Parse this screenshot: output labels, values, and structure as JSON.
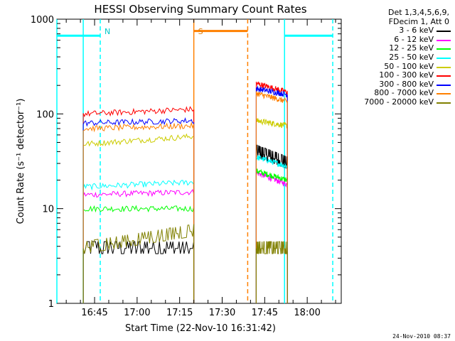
{
  "chart_data": {
    "type": "line",
    "title": "HESSI Observing Summary Count Rates",
    "xlabel": "Start Time (22-Nov-10 16:31:42)",
    "ylabel": "Count Rate (s⁻¹ detector⁻¹)",
    "y_scale": "log",
    "ylim": [
      1,
      1000
    ],
    "xlim": [
      "16:31:42",
      "18:12:00"
    ],
    "x_ticks": [
      "16:45",
      "17:00",
      "17:15",
      "17:30",
      "17:45",
      "18:00"
    ],
    "y_ticks": [
      "1",
      "10",
      "100",
      "1000"
    ],
    "grid": false,
    "legend_position": "right",
    "legend_header": [
      "Det 1,3,4,5,6,9,",
      "FDecim 1, Att 0"
    ],
    "series": [
      {
        "name": "3 - 6 keV",
        "color": "#000000",
        "segments": [
          {
            "x": [
              "16:41",
              "17:20"
            ],
            "y": [
              3.8,
              3.8
            ]
          },
          {
            "x": [
              "17:42",
              "17:53"
            ],
            "y": [
              40,
              30
            ]
          }
        ]
      },
      {
        "name": "6 - 12 keV",
        "color": "#ff00ff",
        "segments": [
          {
            "x": [
              "16:41",
              "17:20"
            ],
            "y": [
              14,
              15
            ]
          },
          {
            "x": [
              "17:42",
              "17:53"
            ],
            "y": [
              24,
              18
            ]
          }
        ]
      },
      {
        "name": "12 - 25 keV",
        "color": "#00ff00",
        "segments": [
          {
            "x": [
              "16:41",
              "17:20"
            ],
            "y": [
              10,
              10
            ]
          },
          {
            "x": [
              "17:42",
              "17:53"
            ],
            "y": [
              25,
              20
            ]
          }
        ]
      },
      {
        "name": "25 - 50 keV",
        "color": "#00ffff",
        "segments": [
          {
            "x": [
              "16:41",
              "17:20"
            ],
            "y": [
              17,
              19
            ]
          },
          {
            "x": [
              "17:42",
              "17:53"
            ],
            "y": [
              35,
              28
            ]
          }
        ]
      },
      {
        "name": "50 - 100 keV",
        "color": "#cccc00",
        "segments": [
          {
            "x": [
              "16:41",
              "17:20"
            ],
            "y": [
              48,
              58
            ]
          },
          {
            "x": [
              "17:42",
              "17:53"
            ],
            "y": [
              85,
              75
            ]
          }
        ]
      },
      {
        "name": "100 - 300 keV",
        "color": "#ff0000",
        "segments": [
          {
            "x": [
              "16:41",
              "17:20"
            ],
            "y": [
              100,
              112
            ]
          },
          {
            "x": [
              "17:42",
              "17:53"
            ],
            "y": [
              210,
              170
            ]
          }
        ]
      },
      {
        "name": "300 - 800 keV",
        "color": "#0000ff",
        "segments": [
          {
            "x": [
              "16:41",
              "17:20"
            ],
            "y": [
              80,
              85
            ]
          },
          {
            "x": [
              "17:42",
              "17:53"
            ],
            "y": [
              185,
              160
            ]
          }
        ]
      },
      {
        "name": "800 - 7000 keV",
        "color": "#ff8000",
        "segments": [
          {
            "x": [
              "16:41",
              "17:20"
            ],
            "y": [
              70,
              75
            ]
          },
          {
            "x": [
              "17:42",
              "17:53"
            ],
            "y": [
              165,
              135
            ]
          }
        ]
      },
      {
        "name": "7000 - 20000 keV",
        "color": "#808000",
        "segments": [
          {
            "x": [
              "16:41",
              "17:20"
            ],
            "y": [
              3.8,
              5.8
            ]
          },
          {
            "x": [
              "17:42",
              "17:53"
            ],
            "y": [
              3.8,
              3.8
            ]
          }
        ]
      }
    ],
    "annotations": [
      {
        "label": "N",
        "color": "#00c8c8",
        "x": "16:47"
      },
      {
        "label": "S",
        "color": "#e07800",
        "x": "17:20"
      }
    ],
    "bars": [
      {
        "color": "#00ffff",
        "x": [
          "16:31:42",
          "16:47"
        ],
        "y": 670
      },
      {
        "color": "#ff8000",
        "x": [
          "17:20",
          "17:39"
        ],
        "y": 750
      },
      {
        "color": "#00ffff",
        "x": [
          "17:52",
          "18:09"
        ],
        "y": 670
      }
    ],
    "markers": [
      {
        "color": "#00ffff",
        "style": "solid",
        "x": "16:31:42"
      },
      {
        "color": "#00ffff",
        "style": "solid",
        "x": "16:41"
      },
      {
        "color": "#00ffff",
        "style": "dashed",
        "x": "16:47"
      },
      {
        "color": "#ff8000",
        "style": "solid",
        "x": "17:20"
      },
      {
        "color": "#ff8000",
        "style": "dashed",
        "x": "17:39"
      },
      {
        "color": "#00ffff",
        "style": "solid",
        "x": "17:52"
      },
      {
        "color": "#00ffff",
        "style": "dashed",
        "x": "18:09"
      }
    ]
  },
  "timestamp": "24-Nov-2010 08:37"
}
